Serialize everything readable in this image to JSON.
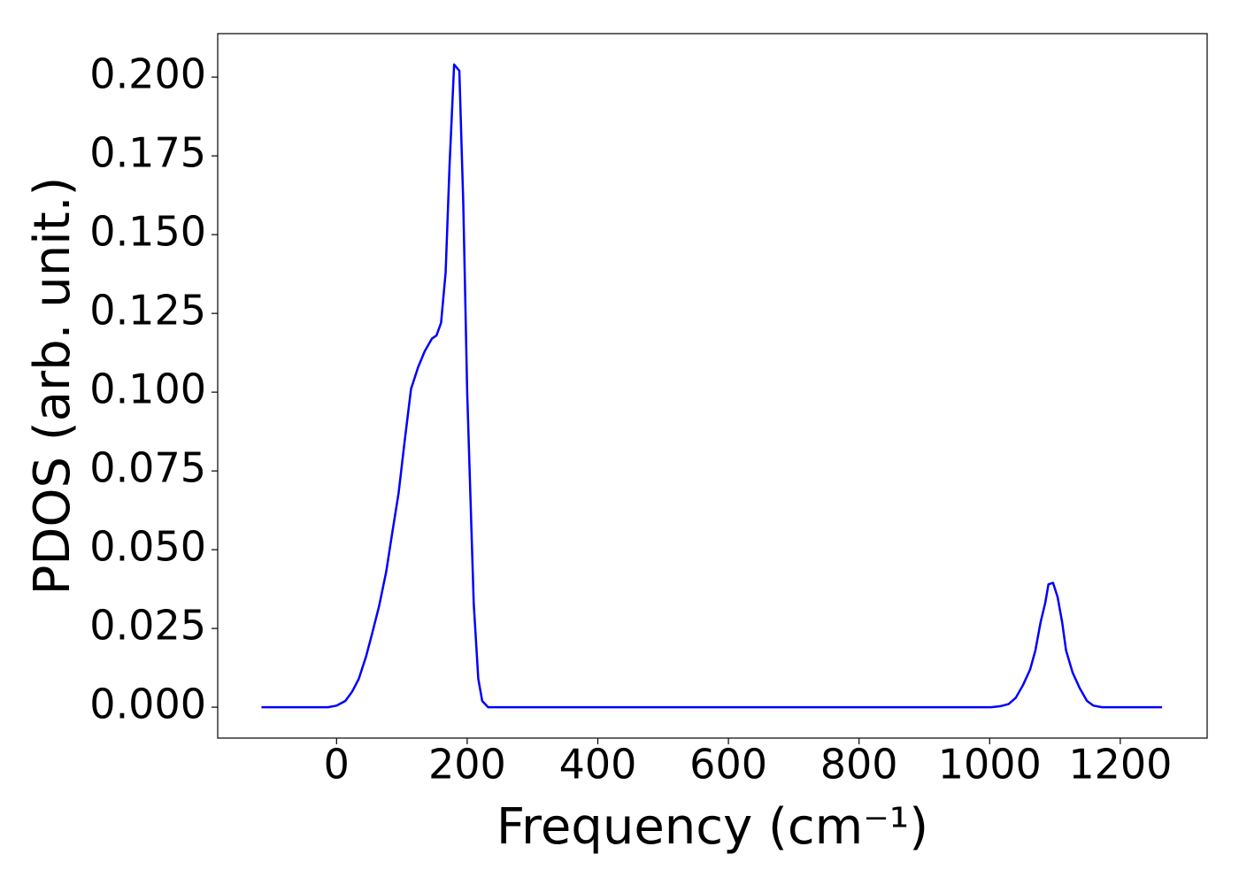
{
  "chart_data": {
    "type": "line",
    "x_label": "Frequency (cm⁻¹)",
    "y_label": "PDOS (arb. unit.)",
    "x": [
      -115,
      -60,
      -30,
      -13,
      0,
      13.5,
      24,
      34,
      45,
      54,
      65,
      76,
      85,
      95,
      104,
      114,
      125,
      135,
      146,
      153,
      160,
      167,
      173,
      180,
      188,
      194,
      200,
      203,
      210,
      217,
      223,
      232,
      300,
      500,
      700,
      900,
      1002,
      1016,
      1029,
      1040,
      1051,
      1062,
      1070,
      1078,
      1085,
      1090,
      1097,
      1104,
      1111,
      1117,
      1127,
      1138,
      1149,
      1159,
      1172,
      1264
    ],
    "series": [
      {
        "color": "#0000ff",
        "values": [
          0,
          0,
          0,
          0,
          0.0005,
          0.002,
          0.005,
          0.009,
          0.016,
          0.023,
          0.032,
          0.043,
          0.055,
          0.068,
          0.084,
          0.101,
          0.108,
          0.113,
          0.117,
          0.118,
          0.122,
          0.138,
          0.172,
          0.204,
          0.202,
          0.16,
          0.1,
          0.08,
          0.033,
          0.009,
          0.002,
          0,
          0,
          0,
          0,
          0,
          0,
          0.0003,
          0.001,
          0.003,
          0.007,
          0.012,
          0.018,
          0.027,
          0.033,
          0.039,
          0.0395,
          0.035,
          0.027,
          0.018,
          0.011,
          0.006,
          0.002,
          0.0005,
          0,
          0
        ]
      }
    ],
    "xlim": [
      -182,
      1333
    ],
    "ylim": [
      -0.0098,
      0.2138
    ],
    "xticks": [
      0,
      200,
      400,
      600,
      800,
      1000,
      1200
    ],
    "yticks": [
      {
        "value": 0,
        "label": "0.000"
      },
      {
        "value": 0.025,
        "label": "0.025"
      },
      {
        "value": 0.05,
        "label": "0.050"
      },
      {
        "value": 0.075,
        "label": "0.075"
      },
      {
        "value": 0.1,
        "label": "0.100"
      },
      {
        "value": 0.125,
        "label": "0.125"
      },
      {
        "value": 0.15,
        "label": "0.150"
      },
      {
        "value": 0.175,
        "label": "0.175"
      },
      {
        "value": 0.2,
        "label": "0.200"
      }
    ],
    "grid": false
  }
}
